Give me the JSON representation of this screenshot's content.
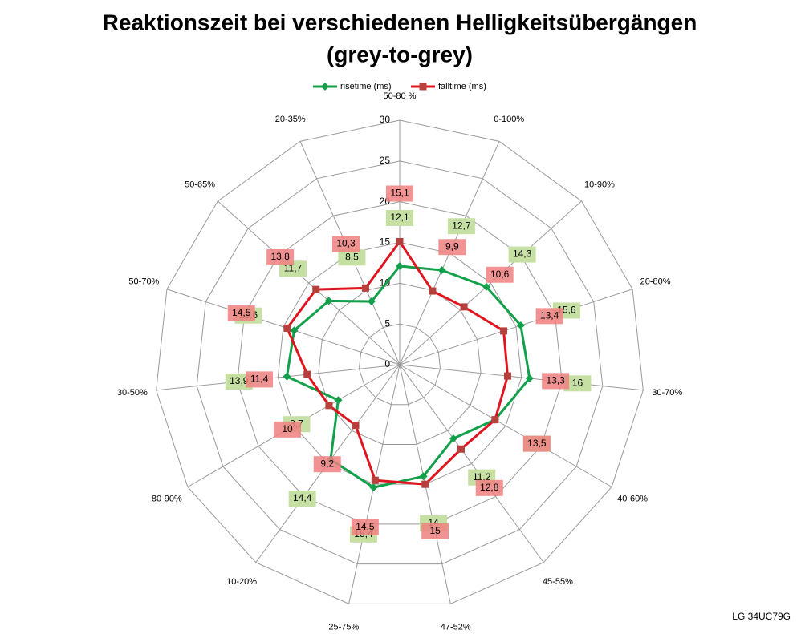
{
  "chart_data": {
    "type": "radar",
    "title": [
      "Reaktionszeit bei verschiedenen Helligkeitsübergängen",
      "(grey-to-grey)"
    ],
    "categories": [
      "50-80 %",
      "0-100%",
      "10-90%",
      "20-80%",
      "30-70%",
      "40-60%",
      "45-55%",
      "47-52%",
      "25-75%",
      "10-20%",
      "80-90%",
      "30-50%",
      "50-70%",
      "50-65%",
      "20-35%"
    ],
    "series": [
      {
        "name": "risetime (ms)",
        "color": "#12a04a",
        "label_color": "#c6e0a4",
        "values": [
          12.1,
          12.7,
          14.3,
          15.6,
          16,
          13.5,
          11.2,
          14,
          15.4,
          14.4,
          8.7,
          13.9,
          13.6,
          11.7,
          8.5
        ],
        "value_labels": [
          "12,1",
          "12,7",
          "14,3",
          "15,6",
          "16",
          "13,5",
          "11,2",
          "14",
          "15,4",
          "14,4",
          "8,7",
          "13,9",
          "13,6",
          "11,7",
          "8,5"
        ]
      },
      {
        "name": "falltime (ms)",
        "color": "#e0141e",
        "label_color": "#f08080",
        "values": [
          15.1,
          9.9,
          10.6,
          13.4,
          13.3,
          13.5,
          12.8,
          15,
          14.5,
          9.2,
          10,
          11.4,
          14.5,
          13.8,
          10.3
        ],
        "value_labels": [
          "15,1",
          "9,9",
          "10,6",
          "13,4",
          "13,3",
          "13,5",
          "12,8",
          "15",
          "14,5",
          "9,2",
          "10",
          "11,4",
          "14,5",
          "13,8",
          "10,3"
        ]
      }
    ],
    "ylim": [
      0,
      30
    ],
    "yticks": [
      0,
      5,
      10,
      15,
      20,
      25,
      30
    ],
    "grid": true,
    "legend": "top",
    "footer": "LG 34UC79G"
  }
}
